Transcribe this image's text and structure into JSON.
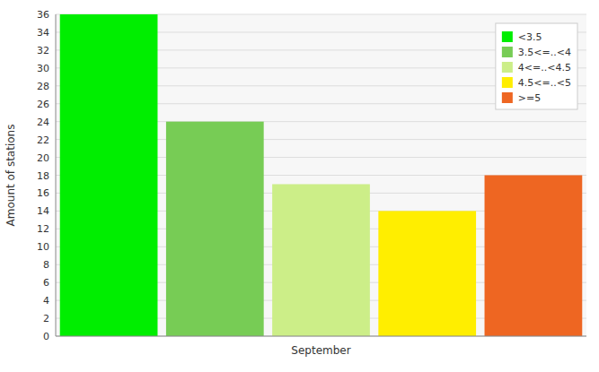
{
  "chart_data": {
    "type": "bar",
    "ylabel": "Amount of stations",
    "categories": [
      "September"
    ],
    "series": [
      {
        "name": "<3.5",
        "color": "#00ee00",
        "values": [
          36
        ]
      },
      {
        "name": "3.5<=..<4",
        "color": "#77cc55",
        "values": [
          24
        ]
      },
      {
        "name": "4<=..<4.5",
        "color": "#ccee88",
        "values": [
          17
        ]
      },
      {
        "name": "4.5<=..<5",
        "color": "#ffee00",
        "values": [
          14
        ]
      },
      {
        "name": ">=5",
        "color": "#ee6622",
        "values": [
          18
        ]
      }
    ],
    "ylim": [
      0,
      36
    ],
    "yticks": [
      0,
      2,
      4,
      6,
      8,
      10,
      12,
      14,
      16,
      18,
      20,
      22,
      24,
      26,
      28,
      30,
      32,
      34,
      36
    ],
    "grid": true,
    "legend": "upper right"
  }
}
